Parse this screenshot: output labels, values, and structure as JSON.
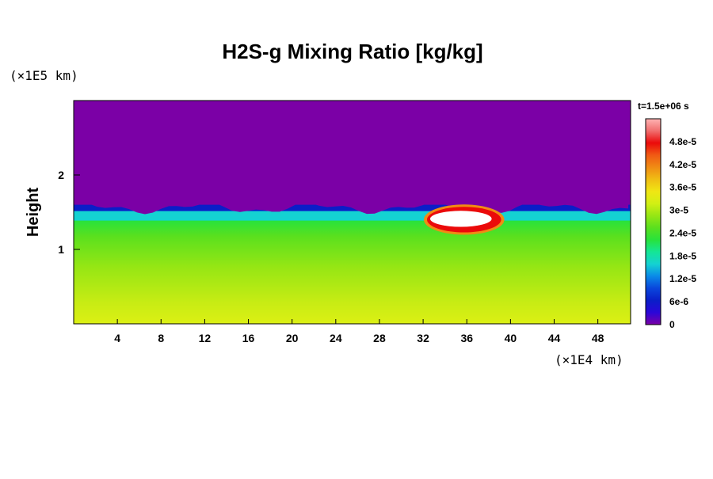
{
  "chart_data": {
    "type": "heatmap",
    "title": "H2S-g Mixing Ratio [kg/kg]",
    "ylabel": "Height",
    "xlabel": "",
    "x_unit_label": "(×1E4 km)",
    "y_unit_label": "(×1E5 km)",
    "time_label": "t=1.5e+06 s",
    "xlim": [
      0,
      51
    ],
    "ylim": [
      0,
      3
    ],
    "x_ticks": [
      4,
      8,
      12,
      16,
      20,
      24,
      28,
      32,
      36,
      40,
      44,
      48
    ],
    "x_tick_labels": [
      "4",
      "8",
      "12",
      "16",
      "20",
      "24",
      "28",
      "32",
      "36",
      "40",
      "44",
      "48"
    ],
    "y_ticks": [
      1,
      2
    ],
    "y_tick_labels": [
      "1",
      "2"
    ],
    "colorbar": {
      "min": 0,
      "max": 5.4e-05,
      "ticks": [
        0,
        6e-06,
        1.2e-05,
        1.8e-05,
        2.4e-05,
        3e-05,
        3.6e-05,
        4.2e-05,
        4.8e-05
      ],
      "tick_labels": [
        "0",
        "6e-6",
        "1.2e-5",
        "1.8e-5",
        "2.4e-5",
        "3e-5",
        "3.6e-5",
        "4.2e-5",
        "4.8e-5"
      ],
      "colors": [
        "#7b00a6",
        "#2a06d8",
        "#0a1ec8",
        "#0a46dc",
        "#0a8ae8",
        "#14d2d2",
        "#14e696",
        "#28e23c",
        "#5ae01e",
        "#96e614",
        "#d2f014",
        "#f0e614",
        "#f0be14",
        "#f08c14",
        "#f05a14",
        "#eb0a0a",
        "#f06e6e",
        "#ffb4b4"
      ]
    },
    "field_description_levels": {
      "upper_region_value": 0,
      "lower_region_value": 3.1e-05,
      "interface_height": 1.6,
      "hotspot_value": 5.4e-05,
      "hotspot_x": [
        32.5,
        39
      ],
      "hotspot_y": [
        1.25,
        1.55
      ]
    }
  }
}
